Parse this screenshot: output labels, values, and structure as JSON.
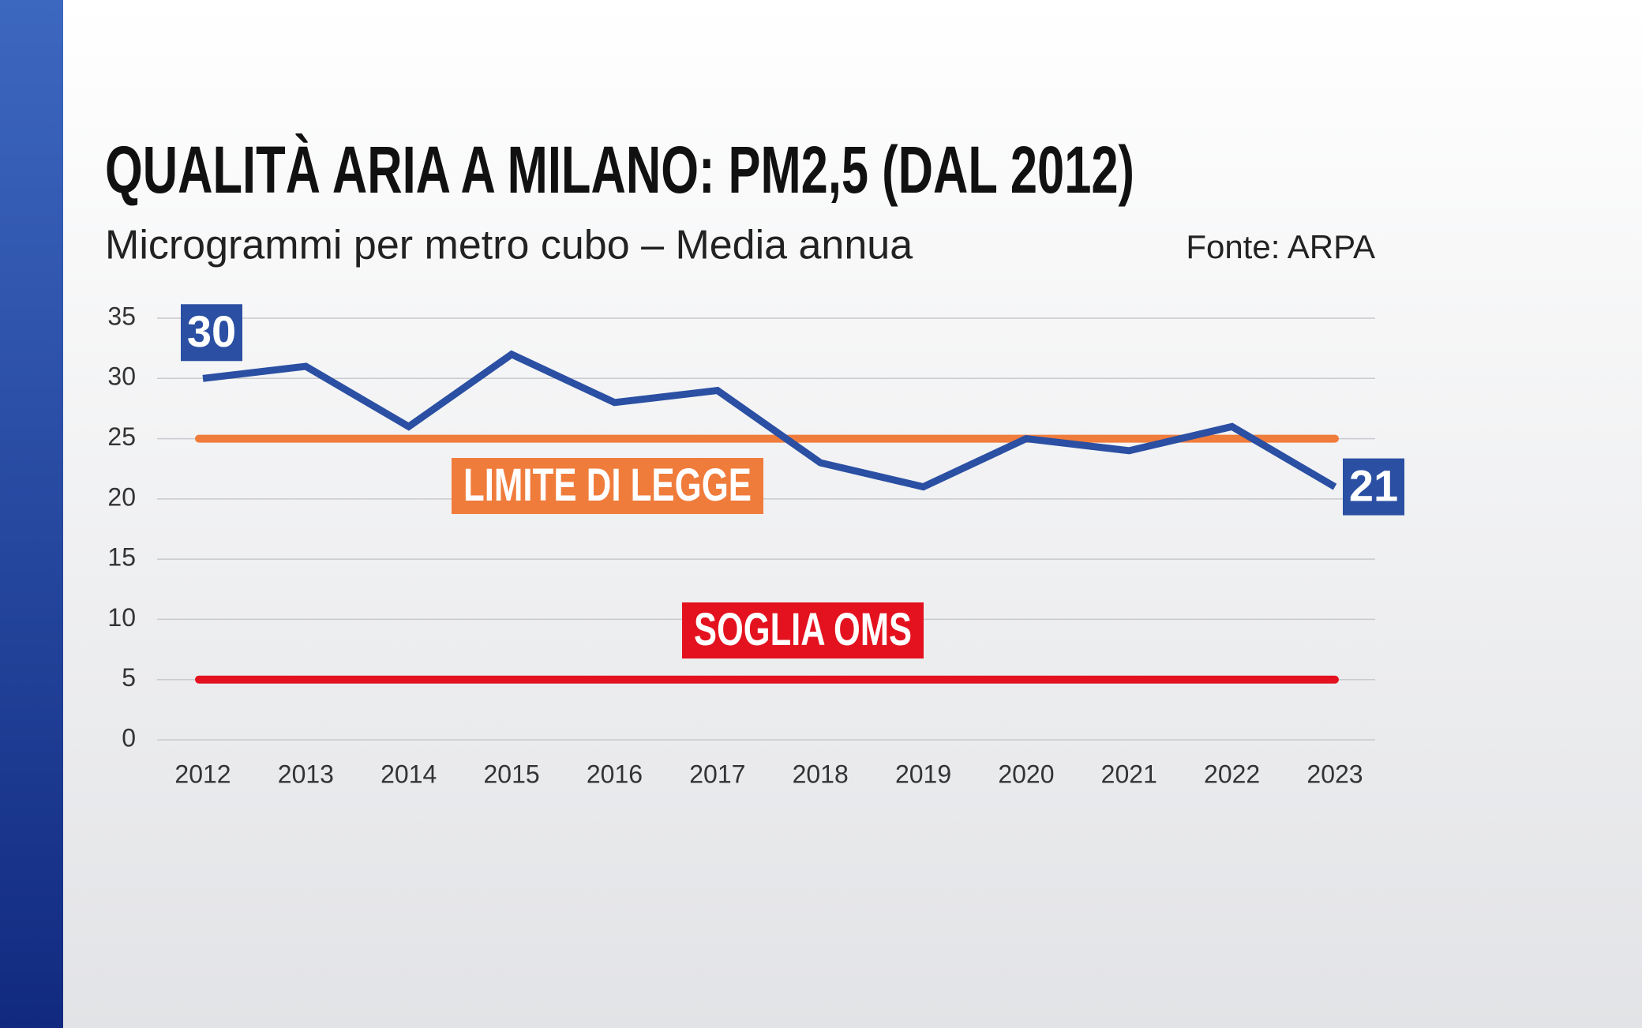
{
  "chart_data": {
    "type": "line",
    "title": "QUALITÀ ARIA A MILANO: PM2,5 (DAL 2012)",
    "subtitle": "Microgrammi per metro cubo – Media annua",
    "source": "Fonte: ARPA",
    "categories": [
      "2012",
      "2013",
      "2014",
      "2015",
      "2016",
      "2017",
      "2018",
      "2019",
      "2020",
      "2021",
      "2022",
      "2023"
    ],
    "series": [
      {
        "name": "PM2,5",
        "color": "#2a4fa3",
        "values": [
          30,
          31,
          26,
          32,
          28,
          29,
          23,
          21,
          25,
          24,
          26,
          21
        ]
      }
    ],
    "reference_lines": [
      {
        "label": "LIMITE DI LEGGE",
        "value": 25,
        "color": "#f07c3c"
      },
      {
        "label": "SOGLIA OMS",
        "value": 5,
        "color": "#e3121e"
      }
    ],
    "ylim": [
      0,
      35
    ],
    "yticks": [
      0,
      5,
      10,
      15,
      20,
      25,
      30,
      35
    ],
    "grid": true
  }
}
